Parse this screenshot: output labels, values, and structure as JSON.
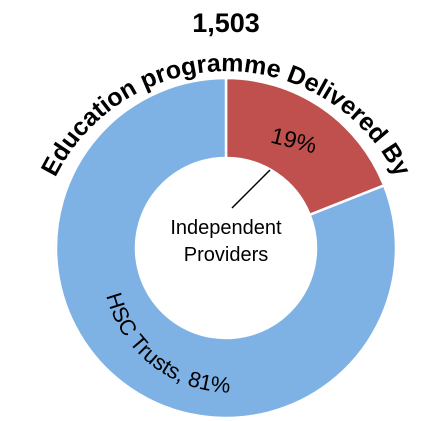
{
  "chart_data": {
    "type": "donut",
    "title": "1,503",
    "subtitle": "Education programme Delivered By",
    "categories": [
      "Independent Providers",
      "HSC Trusts"
    ],
    "values": [
      19,
      81
    ],
    "value_labels": [
      "19%",
      "HSC Trusts, 81%"
    ],
    "colors": [
      "#c0504d",
      "#7eb1e4"
    ]
  }
}
